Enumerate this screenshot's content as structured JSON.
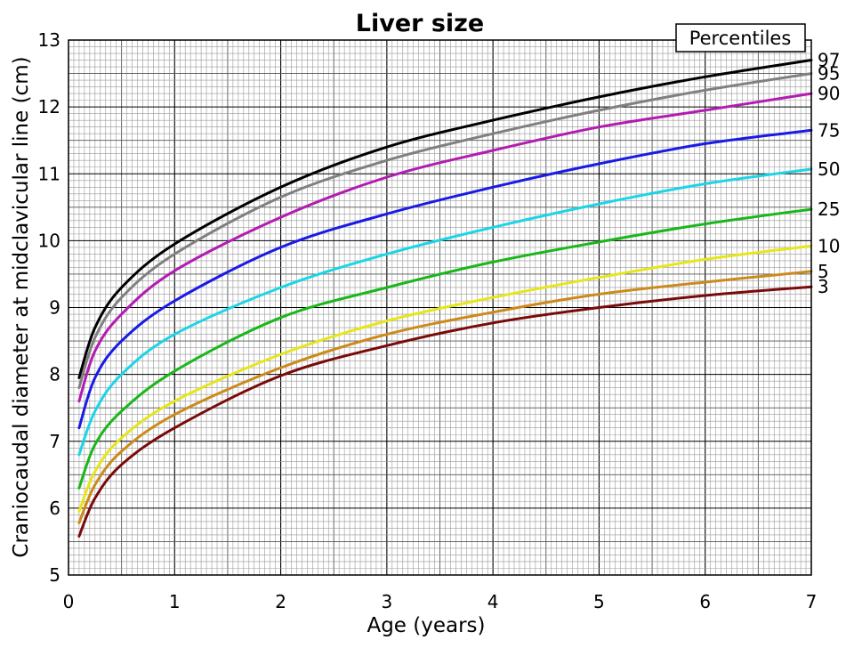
{
  "chart_data": {
    "type": "line",
    "title": "Liver size",
    "xlabel": "Age (years)",
    "ylabel": "Craniocaudal diameter at midclavicular line (cm)",
    "xlim": [
      0,
      7
    ],
    "ylim": [
      5,
      13
    ],
    "x_ticks": [
      "0",
      "1",
      "2",
      "3",
      "4",
      "5",
      "6",
      "7"
    ],
    "y_ticks": [
      "5",
      "6",
      "7",
      "8",
      "9",
      "10",
      "11",
      "12",
      "13"
    ],
    "grid": true,
    "legend_title": "Percentiles",
    "legend_placement": "top-right",
    "x": [
      0.1,
      0.25,
      0.5,
      1,
      2,
      3,
      4,
      5,
      6,
      7
    ],
    "series": [
      {
        "name": "97",
        "color": "#000000",
        "values": [
          7.95,
          8.7,
          9.3,
          9.95,
          10.8,
          11.4,
          11.8,
          12.15,
          12.45,
          12.7
        ]
      },
      {
        "name": "95",
        "color": "#808080",
        "values": [
          7.8,
          8.55,
          9.15,
          9.8,
          10.65,
          11.2,
          11.6,
          11.95,
          12.25,
          12.5
        ]
      },
      {
        "name": "90",
        "color": "#b21cb2",
        "values": [
          7.6,
          8.35,
          8.9,
          9.55,
          10.35,
          10.95,
          11.35,
          11.7,
          11.95,
          12.2
        ]
      },
      {
        "name": "75",
        "color": "#1a1ae6",
        "values": [
          7.2,
          7.95,
          8.5,
          9.1,
          9.9,
          10.4,
          10.8,
          11.15,
          11.45,
          11.65
        ]
      },
      {
        "name": "50",
        "color": "#1ad5e6",
        "values": [
          6.8,
          7.45,
          8.0,
          8.6,
          9.3,
          9.8,
          10.2,
          10.55,
          10.85,
          11.07
        ]
      },
      {
        "name": "25",
        "color": "#1ab71a",
        "values": [
          6.3,
          6.95,
          7.45,
          8.05,
          8.85,
          9.3,
          9.68,
          9.98,
          10.25,
          10.47
        ]
      },
      {
        "name": "10",
        "color": "#e6e61a",
        "values": [
          5.95,
          6.55,
          7.05,
          7.6,
          8.3,
          8.8,
          9.15,
          9.45,
          9.72,
          9.92
        ]
      },
      {
        "name": "5",
        "color": "#cc8a1a",
        "values": [
          5.78,
          6.35,
          6.85,
          7.4,
          8.1,
          8.6,
          8.93,
          9.2,
          9.38,
          9.54
        ]
      },
      {
        "name": "3",
        "color": "#7a0a0a",
        "values": [
          5.58,
          6.15,
          6.65,
          7.2,
          7.98,
          8.43,
          8.77,
          9.0,
          9.18,
          9.31
        ]
      }
    ]
  }
}
